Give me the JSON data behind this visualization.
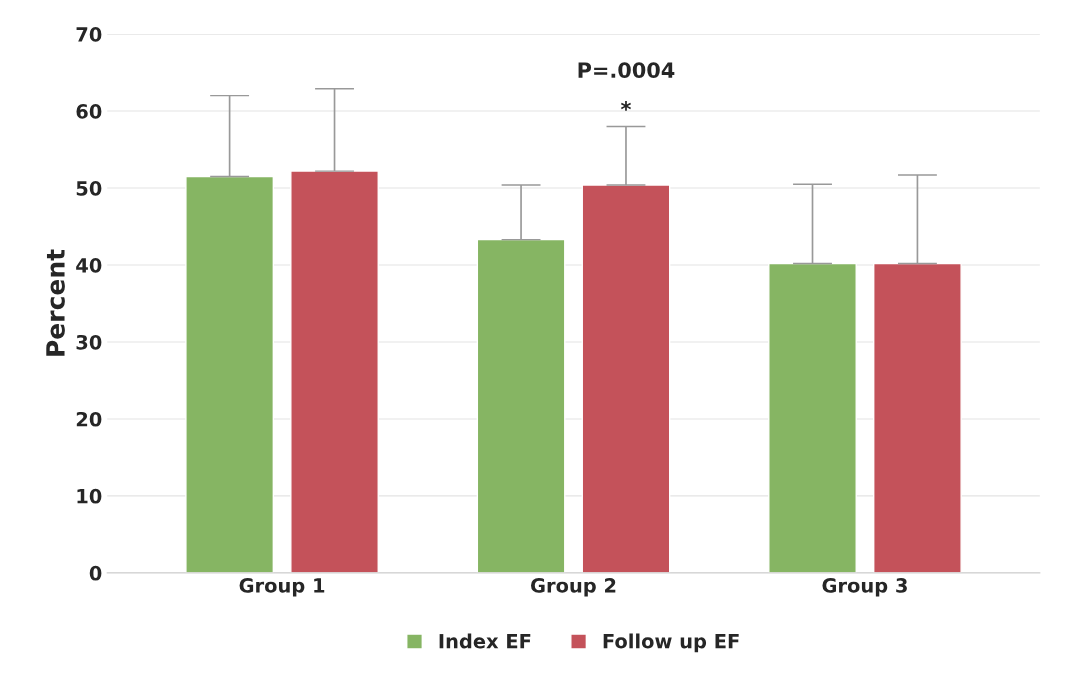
{
  "chart_data": {
    "type": "bar",
    "ylabel": "Percent",
    "categories": [
      "Group 1",
      "Group 2",
      "Group 3"
    ],
    "series": [
      {
        "name": "Index EF",
        "color": "#86b563",
        "values": [
          51.5,
          43.3,
          40.2
        ],
        "errors": [
          [
            51.5,
            62.0
          ],
          [
            43.3,
            50.4
          ],
          [
            40.2,
            50.5
          ]
        ]
      },
      {
        "name": "Follow up EF",
        "color": "#c4525a",
        "values": [
          52.2,
          50.4,
          40.2
        ],
        "errors": [
          [
            52.2,
            62.9
          ],
          [
            50.4,
            58.0
          ],
          [
            40.2,
            51.7
          ]
        ]
      }
    ],
    "ylim": [
      0,
      70
    ],
    "yticks": [
      0,
      10,
      20,
      30,
      40,
      50,
      60,
      70
    ],
    "grid": "y",
    "legend": "bottom",
    "annotations": [
      "P=.0004",
      "*"
    ]
  }
}
